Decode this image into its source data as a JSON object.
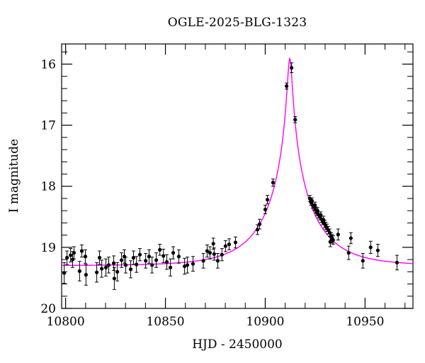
{
  "title": "OGLE-2025-BLG-1323",
  "chart_data": {
    "type": "scatter",
    "title": "OGLE-2025-BLG-1323",
    "xlabel": "HJD - 2450000",
    "ylabel": "I magnitude",
    "xlim": [
      10798,
      10974
    ],
    "ylim": [
      15.67,
      20.0
    ],
    "y_axis_inverted_magnitudes": true,
    "grid": false,
    "x_major_ticks": [
      10800,
      10850,
      10900,
      10950
    ],
    "x_minor_step": 10,
    "y_major_ticks": [
      16,
      17,
      18,
      19,
      20
    ],
    "y_minor_step": 0.2,
    "model_curve": {
      "kind": "paczynski-point-lens",
      "t0": 10912.3,
      "tE": 25.0,
      "u0": 0.044,
      "baseline_I": 19.3,
      "peak_I": 15.91,
      "color": "#ff00ff"
    },
    "point_color": "#000000",
    "points_format": [
      "hjd_minus_2450000",
      "I_mag",
      "err_mag"
    ],
    "points": [
      [
        10799.3,
        19.42,
        0.17
      ],
      [
        10800.7,
        19.17,
        0.11
      ],
      [
        10802.5,
        19.13,
        0.11
      ],
      [
        10803.5,
        19.2,
        0.13
      ],
      [
        10804.2,
        19.09,
        0.1
      ],
      [
        10807.0,
        19.39,
        0.16
      ],
      [
        10808.1,
        19.06,
        0.1
      ],
      [
        10809.9,
        19.15,
        0.11
      ],
      [
        10810.2,
        19.45,
        0.17
      ],
      [
        10815.6,
        19.41,
        0.16
      ],
      [
        10817.0,
        19.17,
        0.11
      ],
      [
        10818.1,
        19.35,
        0.14
      ],
      [
        10820.2,
        19.33,
        0.14
      ],
      [
        10821.6,
        19.29,
        0.13
      ],
      [
        10824.1,
        19.26,
        0.12
      ],
      [
        10824.4,
        19.51,
        0.18
      ],
      [
        10825.9,
        19.4,
        0.15
      ],
      [
        10828.0,
        19.21,
        0.12
      ],
      [
        10829.4,
        19.15,
        0.11
      ],
      [
        10830.1,
        19.29,
        0.13
      ],
      [
        10832.6,
        19.36,
        0.14
      ],
      [
        10834.0,
        19.17,
        0.11
      ],
      [
        10835.5,
        19.28,
        0.13
      ],
      [
        10837.2,
        19.12,
        0.1
      ],
      [
        10840.1,
        19.22,
        0.12
      ],
      [
        10841.8,
        19.15,
        0.11
      ],
      [
        10843.3,
        19.29,
        0.13
      ],
      [
        10845.4,
        19.21,
        0.12
      ],
      [
        10847.2,
        19.04,
        0.09
      ],
      [
        10849.0,
        19.14,
        0.11
      ],
      [
        10850.7,
        19.24,
        0.12
      ],
      [
        10852.5,
        19.33,
        0.14
      ],
      [
        10853.9,
        19.09,
        0.1
      ],
      [
        10856.7,
        19.15,
        0.11
      ],
      [
        10859.6,
        19.31,
        0.13
      ],
      [
        10861.0,
        19.29,
        0.13
      ],
      [
        10863.8,
        19.27,
        0.12
      ],
      [
        10869.0,
        19.22,
        0.12
      ],
      [
        10870.9,
        19.06,
        0.1
      ],
      [
        10872.3,
        19.09,
        0.1
      ],
      [
        10874.0,
        18.94,
        0.09
      ],
      [
        10874.4,
        19.11,
        0.1
      ],
      [
        10876.2,
        19.22,
        0.12
      ],
      [
        10878.3,
        19.12,
        0.1
      ],
      [
        10880.1,
        18.98,
        0.09
      ],
      [
        10881.9,
        18.95,
        0.09
      ],
      [
        10885.1,
        18.92,
        0.09
      ],
      [
        10896.1,
        18.71,
        0.08
      ],
      [
        10897.2,
        18.62,
        0.08
      ],
      [
        10900.0,
        18.38,
        0.07
      ],
      [
        10901.1,
        18.22,
        0.07
      ],
      [
        10903.9,
        17.94,
        0.06
      ],
      [
        10910.7,
        16.36,
        0.05
      ],
      [
        10913.2,
        16.06,
        0.08
      ],
      [
        10915.0,
        16.91,
        0.05
      ],
      [
        10922.3,
        18.2,
        0.05
      ],
      [
        10922.9,
        18.26,
        0.05
      ],
      [
        10923.4,
        18.24,
        0.05
      ],
      [
        10923.8,
        18.31,
        0.05
      ],
      [
        10924.4,
        18.34,
        0.05
      ],
      [
        10924.9,
        18.31,
        0.05
      ],
      [
        10925.3,
        18.39,
        0.05
      ],
      [
        10925.8,
        18.43,
        0.05
      ],
      [
        10926.2,
        18.4,
        0.05
      ],
      [
        10926.8,
        18.47,
        0.05
      ],
      [
        10927.3,
        18.5,
        0.05
      ],
      [
        10927.8,
        18.47,
        0.05
      ],
      [
        10928.2,
        18.54,
        0.05
      ],
      [
        10928.8,
        18.58,
        0.05
      ],
      [
        10929.2,
        18.55,
        0.06
      ],
      [
        10929.8,
        18.62,
        0.06
      ],
      [
        10930.3,
        18.65,
        0.06
      ],
      [
        10930.9,
        18.68,
        0.06
      ],
      [
        10931.6,
        18.72,
        0.06
      ],
      [
        10932.3,
        18.76,
        0.06
      ],
      [
        10932.6,
        18.91,
        0.08
      ],
      [
        10933.0,
        18.82,
        0.06
      ],
      [
        10933.6,
        18.86,
        0.07
      ],
      [
        10934.0,
        18.88,
        0.07
      ],
      [
        10936.5,
        18.79,
        0.09
      ],
      [
        10941.8,
        19.09,
        0.11
      ],
      [
        10942.9,
        18.85,
        0.09
      ],
      [
        10948.9,
        19.22,
        0.12
      ],
      [
        10952.8,
        19.0,
        0.1
      ],
      [
        10956.4,
        19.05,
        0.1
      ],
      [
        10966.0,
        19.25,
        0.12
      ]
    ]
  }
}
